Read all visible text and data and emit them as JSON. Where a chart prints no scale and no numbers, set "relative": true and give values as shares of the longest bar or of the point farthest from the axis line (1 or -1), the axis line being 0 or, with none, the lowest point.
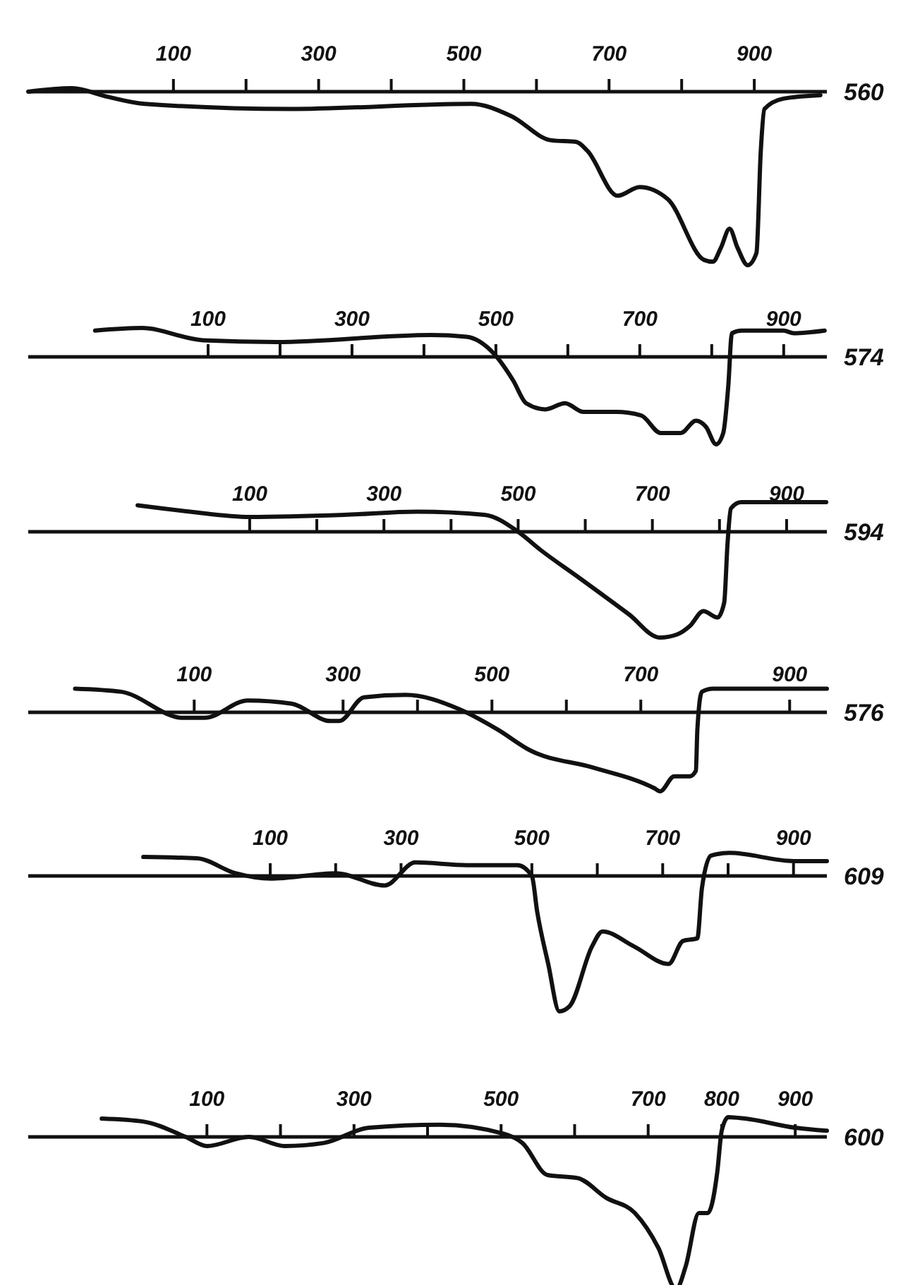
{
  "chart_data": [
    {
      "type": "line",
      "relative": true,
      "xlim": [
        -100,
        1000
      ],
      "xticks": [
        100,
        {
          "value": 200,
          "label": null
        },
        300,
        {
          "value": 400,
          "label": null
        },
        500,
        {
          "value": 600,
          "label": null
        },
        700,
        {
          "value": 800,
          "label": null
        },
        900
      ],
      "annotations": [
        "560"
      ],
      "series": [
        {
          "color": "#111111",
          "x": [
            -100,
            -40,
            10,
            60,
            260,
            510,
            565,
            620,
            655,
            670,
            712,
            742,
            781,
            831,
            843,
            854,
            866,
            877,
            891,
            903,
            909,
            914,
            940,
            991
          ],
          "values": [
            0,
            0.02,
            -0.03,
            -0.07,
            -0.1,
            -0.07,
            -0.14,
            -0.28,
            -0.29,
            -0.34,
            -0.6,
            -0.55,
            -0.62,
            -0.97,
            -0.98,
            -0.9,
            -0.79,
            -0.9,
            -1,
            -0.93,
            -0.34,
            -0.1,
            -0.04,
            -0.02
          ]
        }
      ]
    },
    {
      "type": "line",
      "relative": true,
      "xlim": [
        -150,
        960
      ],
      "xticks": [
        100,
        {
          "value": 200,
          "label": null
        },
        300,
        {
          "value": 400,
          "label": null
        },
        500,
        {
          "value": 600,
          "label": null
        },
        700,
        {
          "value": 800,
          "label": null
        },
        900
      ],
      "annotations": [
        "574"
      ],
      "series": [
        {
          "color": "#111111",
          "x": [
            -57,
            8,
            93,
            195,
            410,
            459,
            498,
            524,
            542,
            569,
            596,
            622,
            667,
            702,
            729,
            757,
            778,
            792,
            806,
            816,
            823,
            828,
            842,
            900,
            914,
            957
          ],
          "values": [
            0.3,
            0.33,
            0.19,
            0.17,
            0.25,
            0.23,
            0.03,
            -0.27,
            -0.53,
            -0.6,
            -0.53,
            -0.63,
            -0.63,
            -0.67,
            -0.87,
            -0.87,
            -0.73,
            -0.8,
            -1,
            -0.87,
            -0.33,
            0.27,
            0.3,
            0.3,
            0.27,
            0.3
          ]
        }
      ]
    },
    {
      "type": "line",
      "relative": true,
      "xlim": [
        -230,
        960
      ],
      "xticks": [
        100,
        {
          "value": 200,
          "label": null
        },
        300,
        {
          "value": 400,
          "label": null
        },
        500,
        {
          "value": 600,
          "label": null
        },
        700,
        {
          "value": 800,
          "label": null
        },
        900
      ],
      "annotations": [
        "594"
      ],
      "series": [
        {
          "color": "#111111",
          "x": [
            -67,
            11,
            100,
            241,
            350,
            450,
            500,
            533,
            592,
            665,
            711,
            737,
            756,
            776,
            797,
            807,
            812,
            817,
            832,
            959
          ],
          "values": [
            0.25,
            0.19,
            0.14,
            0.16,
            0.19,
            0.16,
            0,
            -0.17,
            -0.44,
            -0.78,
            -1,
            -0.97,
            -0.89,
            -0.75,
            -0.81,
            -0.67,
            -0.11,
            0.22,
            0.28,
            0.28
          ]
        }
      ]
    },
    {
      "type": "line",
      "relative": true,
      "xlim": [
        -123,
        950
      ],
      "xticks": [
        100,
        300,
        {
          "value": 400,
          "label": null
        },
        500,
        {
          "value": 600,
          "label": null
        },
        700,
        900
      ],
      "annotations": [
        "576"
      ],
      "series": [
        {
          "color": "#111111",
          "x": [
            -60,
            2,
            85,
            114,
            172,
            231,
            283,
            295,
            328,
            384,
            456,
            508,
            551,
            636,
            718,
            726,
            745,
            766,
            774,
            776,
            782,
            797,
            950
          ],
          "values": [
            0.3,
            0.26,
            -0.07,
            -0.07,
            0.15,
            0.11,
            -0.11,
            -0.11,
            0.19,
            0.22,
            0.04,
            -0.22,
            -0.48,
            -0.7,
            -0.96,
            -1,
            -0.81,
            -0.81,
            -0.74,
            -0.22,
            0.26,
            0.3,
            0.3
          ]
        }
      ]
    },
    {
      "type": "line",
      "relative": true,
      "xlim": [
        -270,
        951
      ],
      "xticks": [
        100,
        {
          "value": 200,
          "label": null
        },
        300,
        500,
        {
          "value": 600,
          "label": null
        },
        700,
        {
          "value": 800,
          "label": null
        },
        900
      ],
      "annotations": [
        "609"
      ],
      "series": [
        {
          "color": "#111111",
          "x": [
            -94,
            -12,
            47,
            100,
            200,
            275,
            322,
            400,
            478,
            500,
            508,
            525,
            542,
            558,
            592,
            608,
            656,
            709,
            731,
            753,
            760,
            774,
            802,
            900,
            951
          ],
          "values": [
            0.14,
            0.13,
            0.02,
            -0.02,
            0.02,
            -0.07,
            0.1,
            0.08,
            0.08,
            0,
            -0.26,
            -0.65,
            -1,
            -0.96,
            -0.52,
            -0.41,
            -0.52,
            -0.65,
            -0.48,
            -0.46,
            -0.09,
            0.15,
            0.17,
            0.11,
            0.11
          ]
        }
      ]
    },
    {
      "type": "line",
      "relative": true,
      "xlim": [
        -143,
        943
      ],
      "xticks": [
        100,
        {
          "value": 200,
          "label": null
        },
        300,
        {
          "value": 400,
          "label": null
        },
        500,
        {
          "value": 600,
          "label": null
        },
        700,
        800,
        900
      ],
      "annotations": [
        "600"
      ],
      "series": [
        {
          "color": "#111111",
          "x": [
            -43,
            14,
            71,
            100,
            157,
            206,
            259,
            320,
            417,
            504,
            529,
            563,
            604,
            643,
            682,
            714,
            738,
            751,
            769,
            781,
            794,
            800,
            809,
            832,
            900,
            943
          ],
          "values": [
            0.12,
            0.1,
            0,
            -0.06,
            0,
            -0.06,
            -0.04,
            0.06,
            0.08,
            0.02,
            -0.04,
            -0.25,
            -0.27,
            -0.4,
            -0.5,
            -0.73,
            -1,
            -0.85,
            -0.5,
            -0.5,
            -0.23,
            0.04,
            0.13,
            0.12,
            0.06,
            0.04
          ]
        }
      ]
    }
  ]
}
